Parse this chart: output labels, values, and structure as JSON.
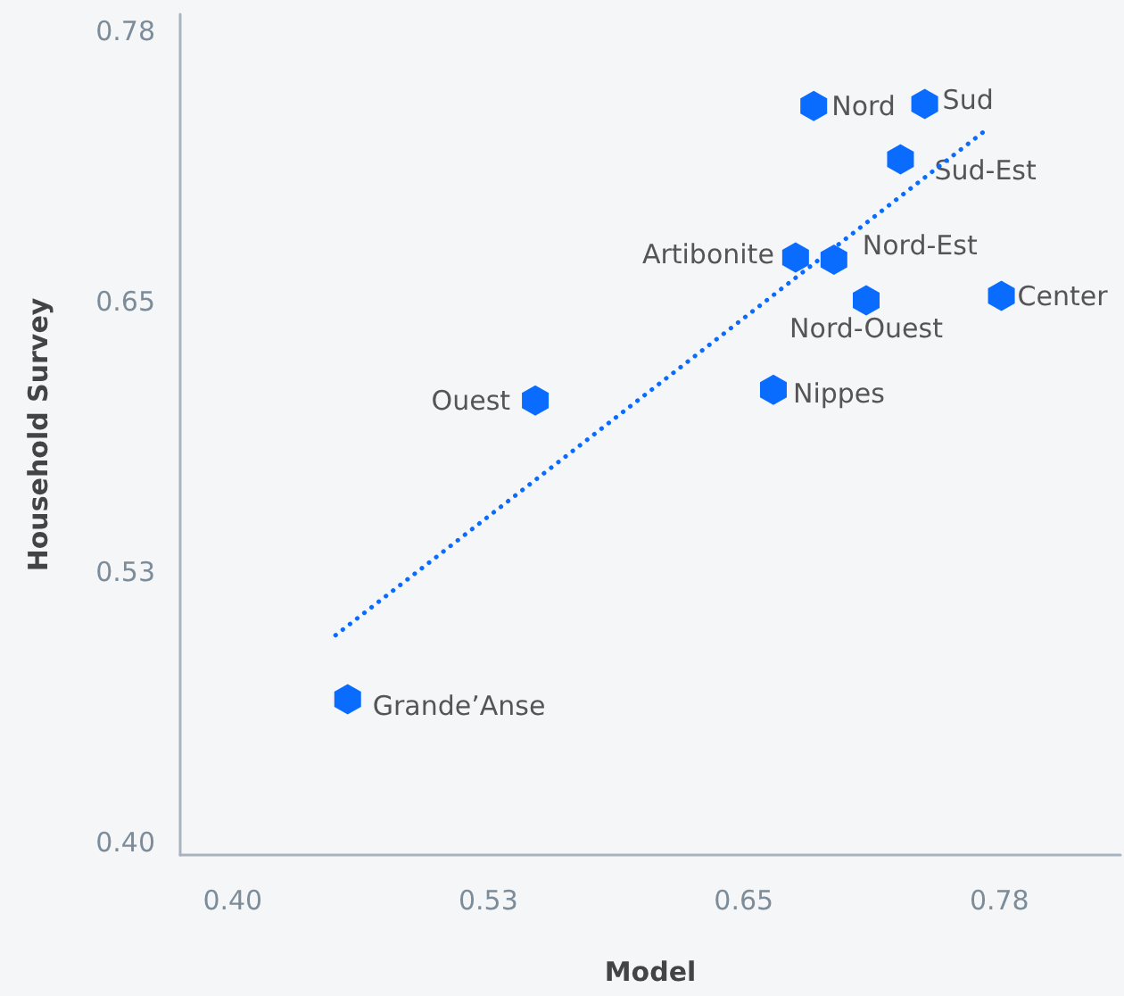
{
  "chart_data": {
    "type": "scatter",
    "xlabel": "Model",
    "ylabel": "Household Survey",
    "xlim": [
      0.374,
      0.84
    ],
    "ylim": [
      0.394,
      0.788
    ],
    "xticks": [
      {
        "value": 0.4,
        "label": "0.40"
      },
      {
        "value": 0.5267,
        "label": "0.53"
      },
      {
        "value": 0.6533,
        "label": "0.65"
      },
      {
        "value": 0.78,
        "label": "0.78"
      }
    ],
    "yticks": [
      {
        "value": 0.4,
        "label": "0.40"
      },
      {
        "value": 0.5267,
        "label": "0.53"
      },
      {
        "value": 0.6533,
        "label": "0.65"
      },
      {
        "value": 0.78,
        "label": "0.78"
      }
    ],
    "grid": false,
    "series": [
      {
        "color": "#0a6cff",
        "x": [
          0.688,
          0.743,
          0.731,
          0.679,
          0.698,
          0.714,
          0.781,
          0.668,
          0.55,
          0.457
        ],
        "values": [
          0.745,
          0.746,
          0.72,
          0.674,
          0.673,
          0.654,
          0.656,
          0.612,
          0.607,
          0.467
        ]
      },
      {
        "type": "line",
        "color": "#0a6cff",
        "line_style": "dotted",
        "x": [
          0.451,
          0.775
        ],
        "values": [
          0.497,
          0.735
        ]
      }
    ],
    "annotations": [
      {
        "text": "Nord",
        "x": 0.688,
        "y": 0.745
      },
      {
        "text": "Sud",
        "x": 0.743,
        "y": 0.746
      },
      {
        "text": "Sud-Est",
        "x": 0.731,
        "y": 0.72
      },
      {
        "text": "Artibonite",
        "x": 0.679,
        "y": 0.674
      },
      {
        "text": "Nord-Est",
        "x": 0.698,
        "y": 0.673
      },
      {
        "text": "Nord-Ouest",
        "x": 0.714,
        "y": 0.654
      },
      {
        "text": "Center",
        "x": 0.781,
        "y": 0.656
      },
      {
        "text": "Nippes",
        "x": 0.668,
        "y": 0.612
      },
      {
        "text": "Ouest",
        "x": 0.55,
        "y": 0.607
      },
      {
        "text": "Grande’Anse",
        "x": 0.457,
        "y": 0.467
      }
    ]
  }
}
